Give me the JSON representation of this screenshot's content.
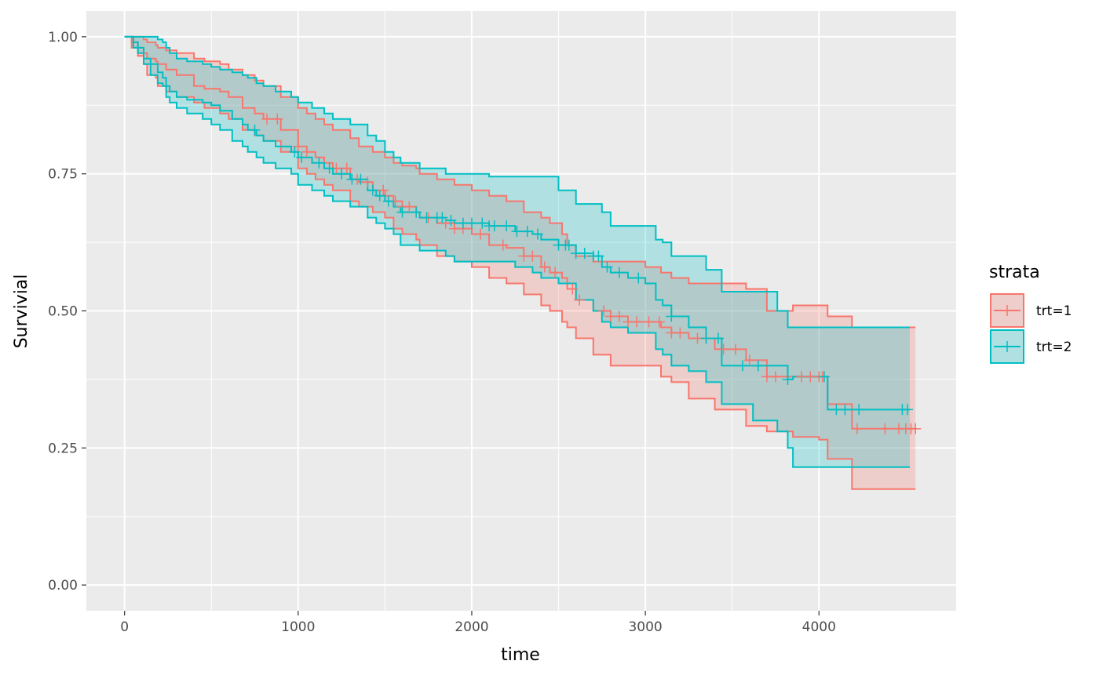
{
  "chart_data": {
    "type": "line",
    "subtype": "kaplan-meier survival curve with confidence bands",
    "xlabel": "time",
    "ylabel": "Survivial",
    "xlim": [
      -220,
      4790
    ],
    "ylim": [
      -0.047,
      1.047
    ],
    "x_ticks": [
      0,
      1000,
      2000,
      3000,
      4000
    ],
    "x_tick_labels": [
      "0",
      "1000",
      "2000",
      "3000",
      "4000"
    ],
    "y_ticks": [
      0,
      0.25,
      0.5,
      0.75,
      1
    ],
    "y_tick_labels": [
      "0.00",
      "0.25",
      "0.50",
      "0.75",
      "1.00"
    ],
    "grid": true,
    "panel_background": "#ebebeb",
    "legend": {
      "title": "strata",
      "position": "right"
    },
    "series": [
      {
        "name": "trt=1",
        "color": "#f8766d",
        "x": [
          0,
          41,
          77,
          110,
          130,
          180,
          191,
          240,
          300,
          400,
          460,
          550,
          600,
          680,
          750,
          800,
          900,
          1000,
          1050,
          1100,
          1150,
          1200,
          1300,
          1350,
          1430,
          1500,
          1550,
          1600,
          1680,
          1700,
          1800,
          1900,
          2000,
          2100,
          2200,
          2300,
          2400,
          2450,
          2520,
          2550,
          2600,
          2700,
          2800,
          2900,
          3000,
          3090,
          3150,
          3250,
          3400,
          3580,
          3700,
          3850,
          4000,
          4050,
          4190,
          4556
        ],
        "survival": [
          1,
          0.99,
          0.98,
          0.97,
          0.96,
          0.955,
          0.95,
          0.94,
          0.93,
          0.91,
          0.905,
          0.9,
          0.89,
          0.87,
          0.86,
          0.85,
          0.83,
          0.8,
          0.79,
          0.78,
          0.77,
          0.76,
          0.74,
          0.735,
          0.72,
          0.71,
          0.7,
          0.69,
          0.68,
          0.67,
          0.66,
          0.65,
          0.64,
          0.62,
          0.615,
          0.6,
          0.58,
          0.57,
          0.56,
          0.54,
          0.52,
          0.5,
          0.49,
          0.48,
          0.48,
          0.47,
          0.46,
          0.45,
          0.43,
          0.41,
          0.38,
          0.38,
          0.38,
          0.33,
          0.285,
          0.285
        ],
        "lower": [
          1,
          0.98,
          0.965,
          0.95,
          0.93,
          0.925,
          0.91,
          0.9,
          0.89,
          0.88,
          0.87,
          0.86,
          0.85,
          0.83,
          0.82,
          0.81,
          0.79,
          0.76,
          0.75,
          0.74,
          0.73,
          0.72,
          0.7,
          0.69,
          0.68,
          0.67,
          0.65,
          0.64,
          0.63,
          0.62,
          0.6,
          0.59,
          0.58,
          0.56,
          0.55,
          0.53,
          0.51,
          0.5,
          0.48,
          0.47,
          0.45,
          0.42,
          0.4,
          0.4,
          0.4,
          0.38,
          0.37,
          0.34,
          0.32,
          0.29,
          0.28,
          0.27,
          0.265,
          0.23,
          0.175,
          0.175
        ],
        "upper": [
          1,
          1,
          1,
          0.995,
          0.99,
          0.985,
          0.98,
          0.975,
          0.97,
          0.96,
          0.955,
          0.95,
          0.94,
          0.93,
          0.92,
          0.91,
          0.89,
          0.87,
          0.86,
          0.85,
          0.84,
          0.83,
          0.815,
          0.8,
          0.79,
          0.78,
          0.77,
          0.765,
          0.76,
          0.75,
          0.74,
          0.73,
          0.72,
          0.71,
          0.7,
          0.68,
          0.67,
          0.66,
          0.64,
          0.62,
          0.6,
          0.59,
          0.59,
          0.59,
          0.58,
          0.57,
          0.56,
          0.55,
          0.55,
          0.54,
          0.5,
          0.51,
          0.51,
          0.49,
          0.47,
          0.47
        ],
        "censor_times": [
          820,
          880,
          1000,
          1050,
          1220,
          1280,
          1340,
          1400,
          1490,
          1560,
          1600,
          1640,
          1750,
          1850,
          1900,
          1950,
          2050,
          2180,
          2300,
          2350,
          2420,
          2480,
          2580,
          2620,
          2760,
          2800,
          2850,
          2900,
          2950,
          3020,
          3080,
          3150,
          3200,
          3300,
          3350,
          3450,
          3520,
          3600,
          3700,
          3750,
          3900,
          3950,
          4000,
          4020,
          4220,
          4380,
          4460,
          4500,
          4530,
          4556
        ]
      },
      {
        "name": "trt=2",
        "color": "#00bfc4",
        "x": [
          0,
          51,
          77,
          110,
          150,
          191,
          220,
          240,
          260,
          300,
          360,
          450,
          500,
          550,
          620,
          680,
          710,
          760,
          800,
          870,
          960,
          1000,
          1080,
          1150,
          1200,
          1300,
          1400,
          1450,
          1500,
          1550,
          1590,
          1700,
          1850,
          1900,
          2100,
          2250,
          2350,
          2400,
          2500,
          2600,
          2700,
          2750,
          2800,
          2900,
          3000,
          3060,
          3100,
          3150,
          3250,
          3350,
          3440,
          3620,
          3760,
          3820,
          3850,
          4050,
          4523
        ],
        "survival": [
          1,
          0.99,
          0.98,
          0.96,
          0.95,
          0.935,
          0.925,
          0.91,
          0.9,
          0.89,
          0.885,
          0.88,
          0.875,
          0.865,
          0.85,
          0.84,
          0.83,
          0.82,
          0.81,
          0.8,
          0.79,
          0.78,
          0.77,
          0.76,
          0.75,
          0.74,
          0.72,
          0.71,
          0.7,
          0.69,
          0.68,
          0.67,
          0.665,
          0.66,
          0.655,
          0.645,
          0.64,
          0.63,
          0.62,
          0.605,
          0.6,
          0.58,
          0.57,
          0.56,
          0.55,
          0.52,
          0.51,
          0.49,
          0.47,
          0.45,
          0.4,
          0.4,
          0.4,
          0.375,
          0.38,
          0.32,
          0.32
        ],
        "lower": [
          1,
          0.98,
          0.97,
          0.95,
          0.93,
          0.915,
          0.91,
          0.89,
          0.88,
          0.87,
          0.86,
          0.85,
          0.84,
          0.83,
          0.81,
          0.8,
          0.79,
          0.78,
          0.77,
          0.76,
          0.75,
          0.73,
          0.72,
          0.71,
          0.7,
          0.69,
          0.67,
          0.66,
          0.65,
          0.64,
          0.62,
          0.61,
          0.6,
          0.59,
          0.59,
          0.58,
          0.57,
          0.56,
          0.55,
          0.52,
          0.5,
          0.48,
          0.47,
          0.46,
          0.46,
          0.43,
          0.42,
          0.4,
          0.39,
          0.37,
          0.33,
          0.3,
          0.28,
          0.25,
          0.215,
          0.215,
          0.215
        ],
        "upper": [
          1,
          1,
          1,
          1,
          1,
          0.995,
          0.99,
          0.98,
          0.97,
          0.96,
          0.955,
          0.95,
          0.945,
          0.94,
          0.935,
          0.93,
          0.925,
          0.915,
          0.91,
          0.9,
          0.89,
          0.88,
          0.87,
          0.86,
          0.85,
          0.84,
          0.82,
          0.81,
          0.79,
          0.78,
          0.77,
          0.76,
          0.75,
          0.75,
          0.745,
          0.745,
          0.745,
          0.745,
          0.72,
          0.695,
          0.695,
          0.68,
          0.655,
          0.655,
          0.655,
          0.63,
          0.625,
          0.6,
          0.6,
          0.575,
          0.535,
          0.535,
          0.5,
          0.47,
          0.47,
          0.47,
          0.47
        ],
        "censor_times": [
          750,
          980,
          1020,
          1120,
          1180,
          1250,
          1310,
          1360,
          1430,
          1470,
          1520,
          1600,
          1680,
          1740,
          1800,
          1830,
          1880,
          1950,
          2000,
          2060,
          2100,
          2130,
          2200,
          2260,
          2320,
          2380,
          2500,
          2540,
          2560,
          2600,
          2650,
          2700,
          2730,
          2780,
          2850,
          2960,
          3150,
          3350,
          3420,
          3560,
          3650,
          3820,
          4030,
          4100,
          4150,
          4230,
          4480,
          4510
        ]
      }
    ]
  }
}
